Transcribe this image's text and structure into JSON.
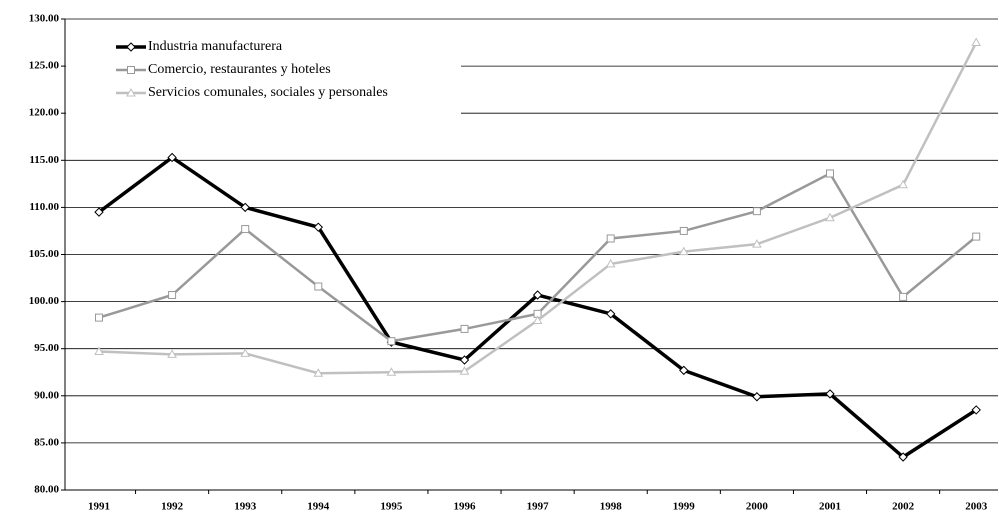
{
  "chart_data": {
    "type": "line",
    "categories": [
      "1991",
      "1992",
      "1993",
      "1994",
      "1995",
      "1996",
      "1997",
      "1998",
      "1999",
      "2000",
      "2001",
      "2002",
      "2003"
    ],
    "series": [
      {
        "name": "Industria manufacturera",
        "color": "#000000",
        "marker": "diamond",
        "values": [
          109.5,
          115.3,
          110.0,
          107.9,
          95.7,
          93.8,
          100.7,
          98.7,
          92.7,
          89.9,
          90.2,
          83.5,
          88.5
        ]
      },
      {
        "name": "Comercio, restaurantes y hoteles",
        "color": "#999999",
        "marker": "square",
        "values": [
          98.3,
          100.7,
          107.7,
          101.6,
          95.8,
          97.1,
          98.7,
          106.7,
          107.5,
          109.6,
          113.6,
          100.5,
          106.9
        ]
      },
      {
        "name": "Servicios comunales, sociales y personales",
        "color": "#c0c0c0",
        "marker": "triangle",
        "values": [
          94.7,
          94.4,
          94.5,
          92.4,
          92.5,
          92.6,
          98.0,
          104.0,
          105.3,
          106.1,
          108.9,
          112.4,
          127.5
        ]
      }
    ],
    "ylim": [
      80,
      130
    ],
    "yticks": [
      {
        "value": 80,
        "label": "80.00"
      },
      {
        "value": 85,
        "label": "85.00"
      },
      {
        "value": 90,
        "label": "90.00"
      },
      {
        "value": 95,
        "label": "95.00"
      },
      {
        "value": 100,
        "label": "100.00"
      },
      {
        "value": 105,
        "label": "105.00"
      },
      {
        "value": 110,
        "label": "110.00"
      },
      {
        "value": 115,
        "label": "115.00"
      },
      {
        "value": 120,
        "label": "120.00"
      },
      {
        "value": 125,
        "label": "125.00"
      },
      {
        "value": 130,
        "label": "130.00"
      }
    ],
    "grid": true,
    "legend": "top-left"
  }
}
